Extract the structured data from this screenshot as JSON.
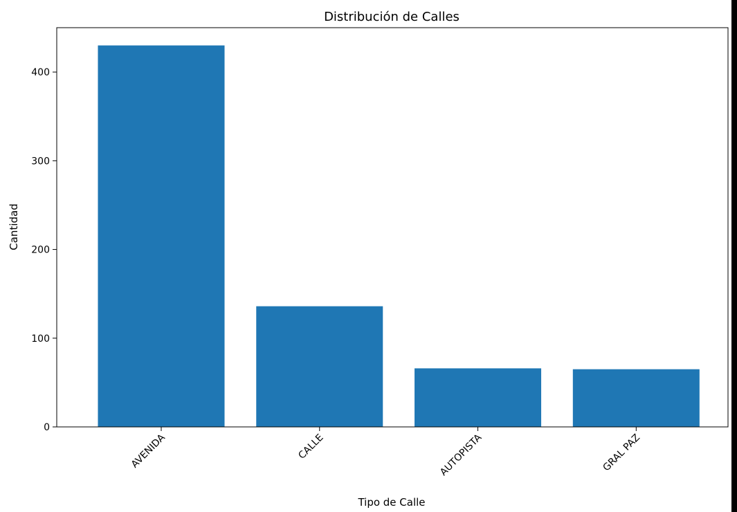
{
  "chart_data": {
    "type": "bar",
    "title": "Distribución de Calles",
    "xlabel": "Tipo de Calle",
    "ylabel": "Cantidad",
    "categories": [
      "AVENIDA",
      "CALLE",
      "AUTOPISTA",
      "GRAL PAZ"
    ],
    "values": [
      430,
      136,
      66,
      65
    ],
    "ylim": [
      0,
      450
    ],
    "yticks": [
      0,
      100,
      200,
      300,
      400
    ],
    "grid": false,
    "bar_color": "#1f77b4"
  }
}
